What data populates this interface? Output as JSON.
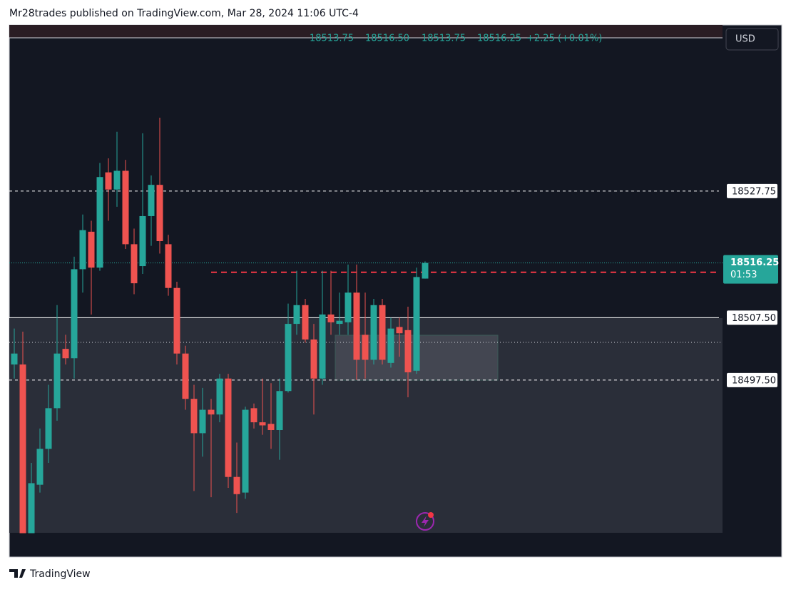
{
  "header": {
    "text": "Mr28trades published on TradingView.com, Mar 28, 2024 11:06 UTC-4"
  },
  "footer": {
    "brand": "TradingView"
  },
  "chart_data": {
    "type": "candlestick",
    "currency": "USD",
    "legend": {
      "open": "18513.75",
      "high": "18516.50",
      "low": "18513.75",
      "close": "18516.25",
      "change": "+2.25 (+0.01%)"
    },
    "up_color": "#26a69a",
    "down_color": "#ef5350",
    "ylim": [
      18469.18,
      18554.34
    ],
    "levels": [
      {
        "value": 18527.75,
        "label": "18527.75",
        "style": "dashed"
      },
      {
        "value": 18507.5,
        "label": "18507.50",
        "style": "solid"
      },
      {
        "value": 18497.5,
        "label": "18497.50",
        "style": "dashed"
      }
    ],
    "last_price": {
      "value": 18516.25,
      "label": "18516.25",
      "countdown": "01:53"
    },
    "alert_line": 18514.75,
    "open": [
      18500.0,
      18500.0,
      18473.0,
      18480.75,
      18486.5,
      18493.0,
      18502.5,
      18501.0,
      18515.25,
      18521.25,
      18515.5,
      18530.75,
      18528.0,
      18531.0,
      18519.25,
      18515.75,
      18523.75,
      18528.75,
      18519.25,
      18512.25,
      18501.75,
      18494.5,
      18489.0,
      18492.75,
      18492.0,
      18497.75,
      18482.0,
      18479.5,
      18493.0,
      18490.75,
      18490.5,
      18489.5,
      18495.75,
      18506.5,
      18509.5,
      18504.0,
      18497.75,
      18508.0,
      18506.5,
      18506.75,
      18511.5,
      18504.75,
      18500.75,
      18509.5,
      18500.25,
      18506.0,
      18505.5,
      18499.0,
      18513.75
    ],
    "high": [
      18505.75,
      18505.25,
      18484.25,
      18489.75,
      18496.75,
      18509.5,
      18504.75,
      18517.25,
      18524.0,
      18523.0,
      18532.25,
      18533.0,
      18537.25,
      18532.75,
      18521.75,
      18537.0,
      18530.25,
      18539.5,
      18520.75,
      18513.25,
      18503.0,
      18496.75,
      18496.25,
      18494.5,
      18498.5,
      18498.5,
      18487.5,
      18493.25,
      18493.75,
      18497.75,
      18497.0,
      18497.75,
      18509.75,
      18515.0,
      18510.5,
      18506.5,
      18515.0,
      18515.0,
      18511.5,
      18516.0,
      18516.0,
      18511.5,
      18510.5,
      18510.5,
      18507.5,
      18507.5,
      18509.25,
      18515.5,
      18516.5
    ],
    "low": [
      18497.75,
      18473.0,
      18473.0,
      18479.5,
      18484.25,
      18491.0,
      18500.0,
      18497.75,
      18511.5,
      18508.0,
      18515.0,
      18523.0,
      18525.25,
      18518.5,
      18511.25,
      18514.5,
      18519.0,
      18517.75,
      18511.0,
      18500.0,
      18492.75,
      18479.75,
      18485.25,
      18478.75,
      18490.75,
      18480.25,
      18476.25,
      18478.5,
      18489.75,
      18488.75,
      18486.5,
      18484.75,
      18495.5,
      18504.75,
      18503.5,
      18492.0,
      18496.75,
      18504.75,
      18504.75,
      18504.75,
      18497.5,
      18497.75,
      18500.0,
      18500.0,
      18499.5,
      18501.25,
      18494.75,
      18498.5,
      18513.75
    ],
    "close": [
      18501.75,
      18473.0,
      18481.0,
      18486.5,
      18493.0,
      18501.75,
      18501.0,
      18515.25,
      18521.5,
      18515.5,
      18530.0,
      18528.0,
      18531.0,
      18519.25,
      18513.0,
      18523.75,
      18528.75,
      18519.75,
      18512.25,
      18501.75,
      18494.5,
      18489.0,
      18492.75,
      18492.0,
      18497.75,
      18482.0,
      18479.25,
      18492.75,
      18490.75,
      18490.25,
      18489.5,
      18495.75,
      18506.5,
      18509.5,
      18504.0,
      18497.75,
      18508.0,
      18506.75,
      18507.0,
      18511.5,
      18500.75,
      18500.75,
      18509.5,
      18500.75,
      18505.75,
      18505.0,
      18498.75,
      18514.0,
      18516.25
    ]
  }
}
